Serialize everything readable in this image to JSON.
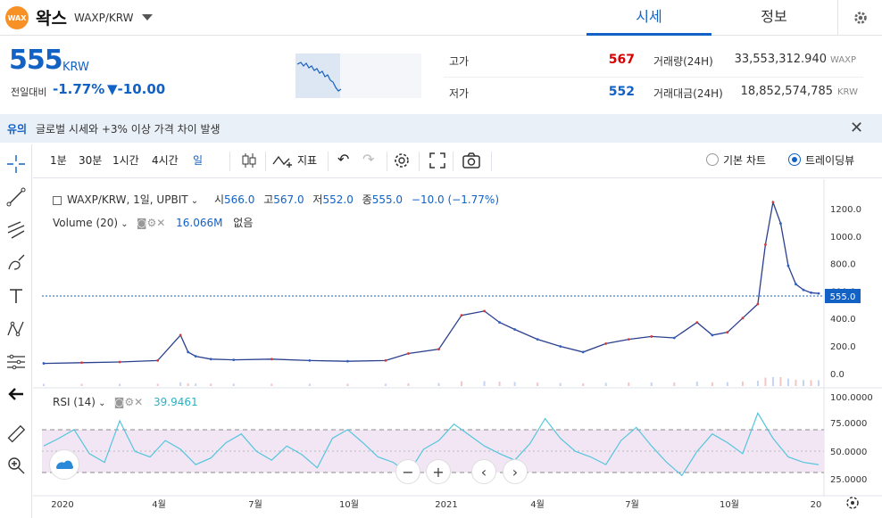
{
  "header": {
    "coin_name": "왁스",
    "pair": "WAXP/KRW",
    "logo_text": "WAX",
    "tabs": [
      {
        "label": "시세",
        "active": true
      },
      {
        "label": "정보",
        "active": false
      }
    ]
  },
  "price": {
    "current": "555",
    "unit": "KRW",
    "change_label": "전일대비",
    "change_pct": "-1.77%",
    "change_val": "▼-10.00"
  },
  "stats": {
    "high_label": "고가",
    "high": "567",
    "low_label": "저가",
    "low": "552",
    "volume_label": "거래량(24H)",
    "volume": "33,553,312.940",
    "volume_unit": "WAXP",
    "amount_label": "거래대금(24H)",
    "amount": "18,852,574,785",
    "amount_unit": "KRW"
  },
  "notice": {
    "tag": "유의",
    "message": "글로벌 시세와 +3% 이상 가격 차이 발생"
  },
  "toolbar": {
    "intervals": [
      "1분",
      "30분",
      "1시간",
      "4시간",
      "일"
    ],
    "selected_interval": "일",
    "indicator_label": "지표",
    "view_basic": "기본 차트",
    "view_trading": "트레이딩뷰"
  },
  "chart_legend": {
    "symbol": "WAXP/KRW, 1일, UPBIT",
    "open_lbl": "시",
    "open": "566.0",
    "high_lbl": "고",
    "high": "567.0",
    "low_lbl": "저",
    "low": "552.0",
    "close_lbl": "종",
    "close": "555.0",
    "change": "−10.0 (−1.77%)",
    "volume_lbl": "Volume (20)",
    "volume_val": "16.066M",
    "volume_extra": "없음",
    "rsi_lbl": "RSI (14)",
    "rsi_val": "39.9461",
    "last_price_tag": "555.0"
  },
  "chart_data": {
    "type": "line",
    "x_labels": [
      "2020",
      "4월",
      "7월",
      "10월",
      "2021",
      "4월",
      "7월",
      "10월",
      "20"
    ],
    "price_axis": [
      "1200.0",
      "1000.0",
      "800.0",
      "600.0",
      "400.0",
      "200.0",
      "0.0"
    ],
    "rsi_axis": [
      "100.0000",
      "75.0000",
      "50.0000",
      "25.0000"
    ],
    "ylim": [
      -50,
      1300
    ],
    "series": [
      {
        "x": [
          0,
          5,
          10,
          15,
          18,
          19,
          20,
          22,
          25,
          30,
          35,
          40,
          45,
          48,
          52,
          55,
          58,
          60,
          62,
          65,
          68,
          71,
          74,
          77,
          80,
          83,
          86,
          88,
          90,
          92,
          94,
          95,
          96,
          97,
          98,
          99,
          100,
          101,
          102
        ],
        "values": [
          60,
          65,
          70,
          80,
          260,
          140,
          110,
          90,
          85,
          90,
          80,
          75,
          80,
          130,
          160,
          400,
          430,
          350,
          300,
          230,
          180,
          140,
          200,
          230,
          250,
          240,
          350,
          260,
          280,
          380,
          480,
          900,
          1200,
          1050,
          750,
          620,
          580,
          560,
          555
        ]
      }
    ],
    "rsi_values": [
      55,
      62,
      70,
      48,
      40,
      78,
      50,
      45,
      60,
      52,
      38,
      44,
      58,
      66,
      50,
      42,
      55,
      47,
      35,
      62,
      70,
      58,
      45,
      40,
      30,
      52,
      60,
      75,
      65,
      55,
      48,
      42,
      57,
      80,
      62,
      50,
      45,
      38,
      60,
      72,
      55,
      40,
      28,
      50,
      66,
      58,
      48,
      85,
      62,
      45,
      40,
      38
    ]
  }
}
